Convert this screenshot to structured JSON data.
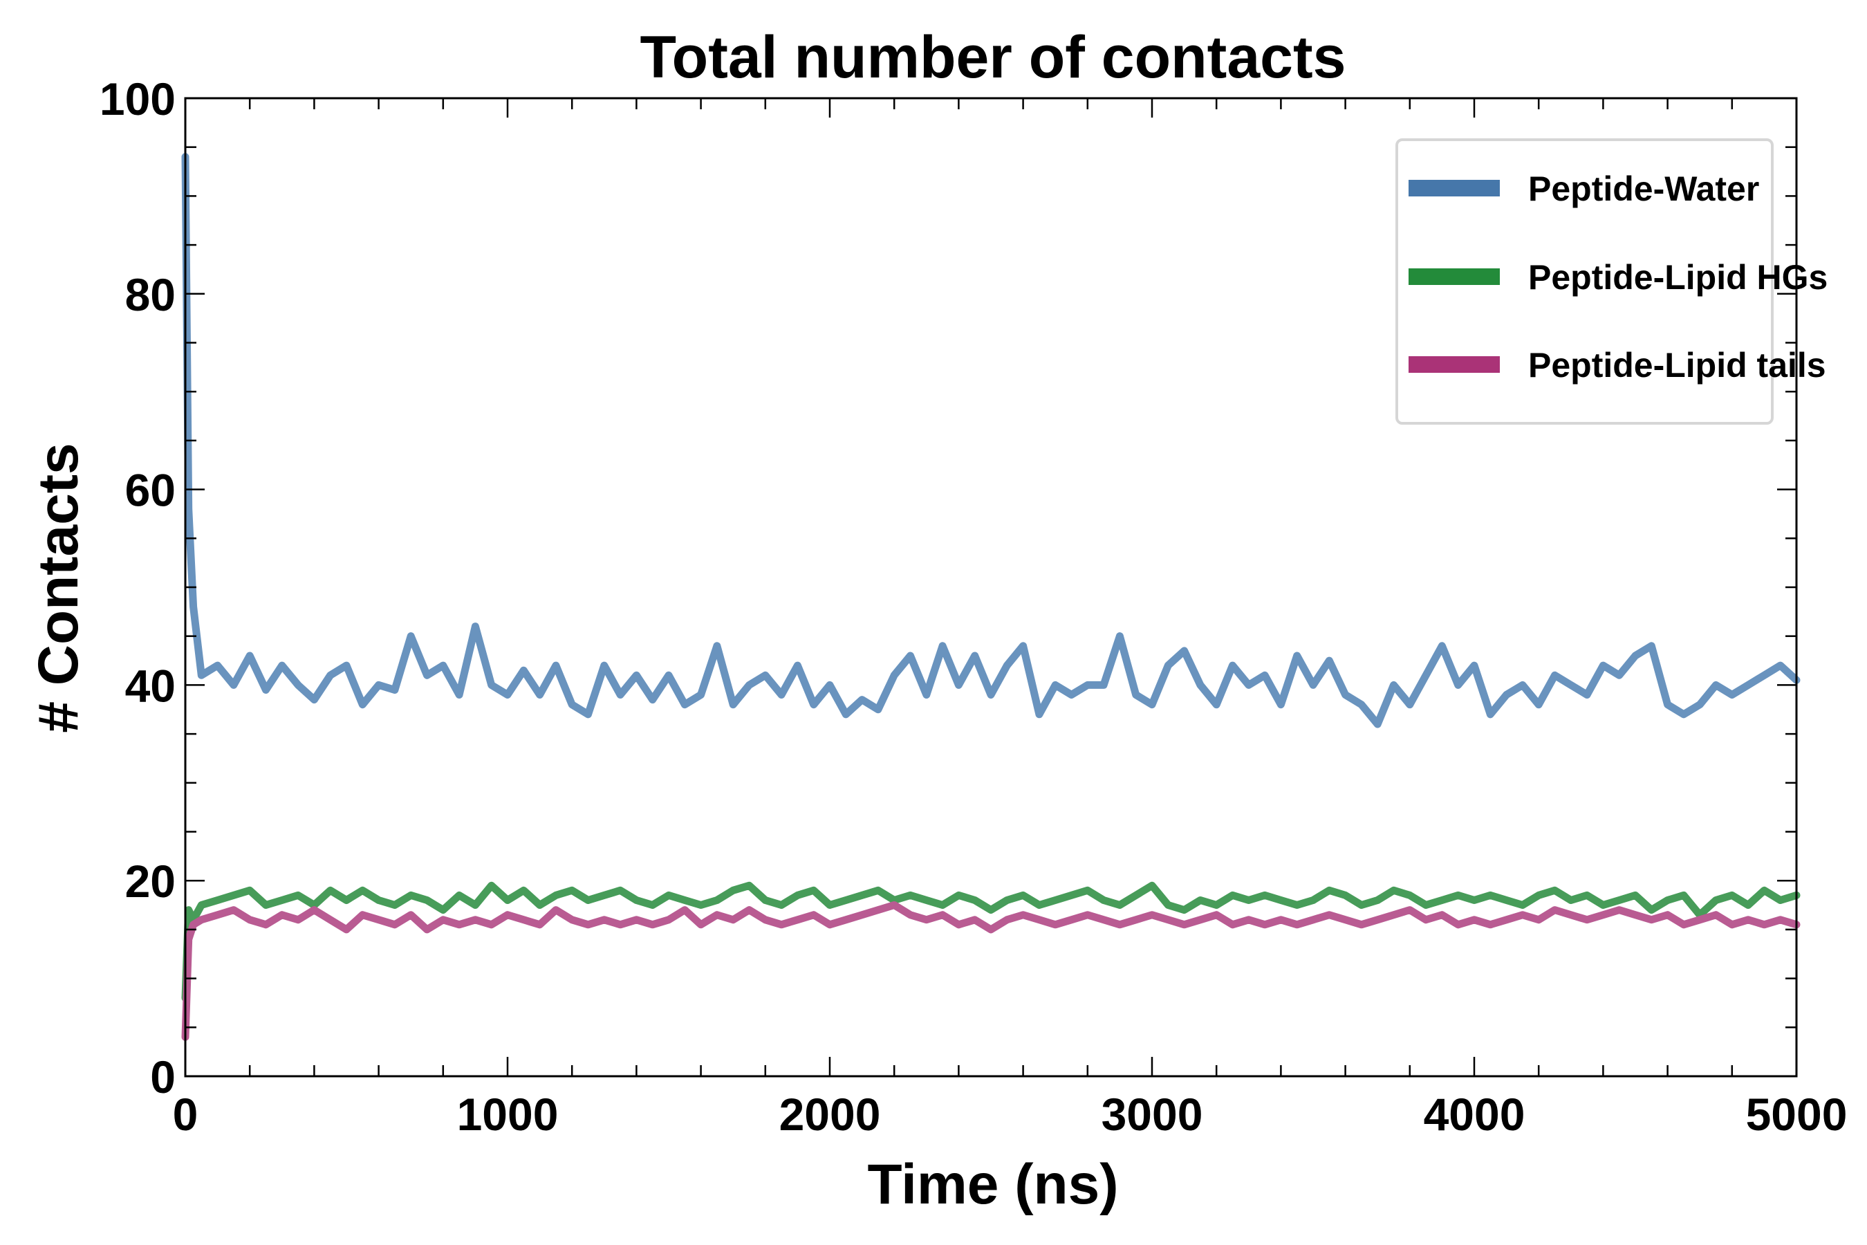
{
  "chart_data": {
    "type": "line",
    "title": "Total number of contacts",
    "xlabel": "Time (ns)",
    "ylabel": "# Contacts",
    "xlim": [
      0,
      5000
    ],
    "ylim": [
      0,
      100
    ],
    "xticks": [
      0,
      1000,
      2000,
      3000,
      4000,
      5000
    ],
    "xtick_labels": [
      "0",
      "1000",
      "2000",
      "3000",
      "4000",
      "5000"
    ],
    "yticks": [
      0,
      20,
      40,
      60,
      80,
      100
    ],
    "ytick_labels": [
      "0",
      "20",
      "40",
      "60",
      "80",
      "100"
    ],
    "x_minor_step": 200,
    "y_minor_step": 5,
    "grid": false,
    "legend_position": "top-right",
    "x": [
      0,
      10,
      25,
      50,
      100,
      150,
      200,
      250,
      300,
      350,
      400,
      450,
      500,
      550,
      600,
      650,
      700,
      750,
      800,
      850,
      900,
      950,
      1000,
      1050,
      1100,
      1150,
      1200,
      1250,
      1300,
      1350,
      1400,
      1450,
      1500,
      1550,
      1600,
      1650,
      1700,
      1750,
      1800,
      1850,
      1900,
      1950,
      2000,
      2050,
      2100,
      2150,
      2200,
      2250,
      2300,
      2350,
      2400,
      2450,
      2500,
      2550,
      2600,
      2650,
      2700,
      2750,
      2800,
      2850,
      2900,
      2950,
      3000,
      3050,
      3100,
      3150,
      3200,
      3250,
      3300,
      3350,
      3400,
      3450,
      3500,
      3550,
      3600,
      3650,
      3700,
      3750,
      3800,
      3850,
      3900,
      3950,
      4000,
      4050,
      4100,
      4150,
      4200,
      4250,
      4300,
      4350,
      4400,
      4450,
      4500,
      4550,
      4600,
      4650,
      4700,
      4750,
      4800,
      4850,
      4900,
      4950,
      5000
    ],
    "series": [
      {
        "name": "Peptide-Water",
        "color": "#4677aa",
        "line_color": "#6993be",
        "values": [
          94,
          58,
          48,
          41,
          42,
          40,
          43,
          39.5,
          42,
          40,
          38.5,
          41,
          42,
          38,
          40,
          39.5,
          45,
          41,
          42,
          39,
          46,
          40,
          39,
          41.5,
          39,
          42,
          38,
          37,
          42,
          39,
          41,
          38.5,
          41,
          38,
          39,
          44,
          38,
          40,
          41,
          39,
          42,
          38,
          40,
          37,
          38.5,
          37.5,
          41,
          43,
          39,
          44,
          40,
          43,
          39,
          42,
          44,
          37,
          40,
          39,
          40,
          40,
          45,
          39,
          38,
          42,
          43.5,
          40,
          38,
          42,
          40,
          41,
          38,
          43,
          40,
          42.5,
          39,
          38,
          36,
          40,
          38,
          41,
          44,
          40,
          42,
          37,
          39,
          40,
          38,
          41,
          40,
          39,
          42,
          41,
          43,
          44,
          38,
          37,
          38,
          40,
          39,
          40,
          41,
          42,
          40.5
        ]
      },
      {
        "name": "Peptide-Lipid HGs",
        "color": "#238b3a",
        "line_color": "#479c59",
        "values": [
          8,
          17,
          16,
          17.5,
          18,
          18.5,
          19,
          17.5,
          18,
          18.5,
          17.5,
          19,
          18,
          19,
          18,
          17.5,
          18.5,
          18,
          17,
          18.5,
          17.5,
          19.5,
          18,
          19,
          17.5,
          18.5,
          19,
          18,
          18.5,
          19,
          18,
          17.5,
          18.5,
          18,
          17.5,
          18,
          19,
          19.5,
          18,
          17.5,
          18.5,
          19,
          17.5,
          18,
          18.5,
          19,
          18,
          18.5,
          18,
          17.5,
          18.5,
          18,
          17,
          18,
          18.5,
          17.5,
          18,
          18.5,
          19,
          18,
          17.5,
          18.5,
          19.5,
          17.5,
          17,
          18,
          17.5,
          18.5,
          18,
          18.5,
          18,
          17.5,
          18,
          19,
          18.5,
          17.5,
          18,
          19,
          18.5,
          17.5,
          18,
          18.5,
          18,
          18.5,
          18,
          17.5,
          18.5,
          19,
          18,
          18.5,
          17.5,
          18,
          18.5,
          17,
          18,
          18.5,
          16.5,
          18,
          18.5,
          17.5,
          19,
          18,
          18.5
        ]
      },
      {
        "name": "Peptide-Lipid tails",
        "color": "#aa3377",
        "line_color": "#b95b92",
        "values": [
          4,
          14,
          15.5,
          16,
          16.5,
          17,
          16,
          15.5,
          16.5,
          16,
          17,
          16,
          15,
          16.5,
          16,
          15.5,
          16.5,
          15,
          16,
          15.5,
          16,
          15.5,
          16.5,
          16,
          15.5,
          17,
          16,
          15.5,
          16,
          15.5,
          16,
          15.5,
          16,
          17,
          15.5,
          16.5,
          16,
          17,
          16,
          15.5,
          16,
          16.5,
          15.5,
          16,
          16.5,
          17,
          17.5,
          16.5,
          16,
          16.5,
          15.5,
          16,
          15,
          16,
          16.5,
          16,
          15.5,
          16,
          16.5,
          16,
          15.5,
          16,
          16.5,
          16,
          15.5,
          16,
          16.5,
          15.5,
          16,
          15.5,
          16,
          15.5,
          16,
          16.5,
          16,
          15.5,
          16,
          16.5,
          17,
          16,
          16.5,
          15.5,
          16,
          15.5,
          16,
          16.5,
          16,
          17,
          16.5,
          16,
          16.5,
          17,
          16.5,
          16,
          16.5,
          15.5,
          16,
          16.5,
          15.5,
          16,
          15.5,
          16,
          15.5
        ]
      }
    ]
  }
}
